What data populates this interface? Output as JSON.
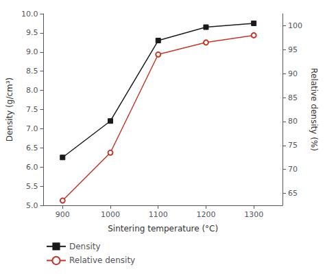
{
  "chart_data": {
    "type": "line",
    "x": [
      900,
      1000,
      1100,
      1200,
      1300
    ],
    "xlabel": "Sintering temperature (°C)",
    "ylabel": "Density (g/cm³)",
    "y2label": "Relative density (%)",
    "xlim": [
      860,
      1360
    ],
    "xticks": [
      900,
      1000,
      1100,
      1200,
      1300
    ],
    "ylim": [
      5.0,
      10.0
    ],
    "yticks": [
      {
        "value": 5,
        "label": "5.0"
      },
      5.5,
      {
        "value": 6,
        "label": "6.0"
      },
      6.5,
      {
        "value": 7,
        "label": "7.0"
      },
      7.5,
      {
        "value": 8,
        "label": "8.0"
      },
      8.5,
      {
        "value": 9,
        "label": "9.0"
      },
      9.5,
      {
        "value": 10,
        "label": "10.0"
      }
    ],
    "y2lim": [
      62.5,
      102.5
    ],
    "y2ticks": [
      65,
      70,
      75,
      80,
      85,
      90,
      95,
      100
    ],
    "grid": false,
    "legend": "lower left",
    "series": [
      {
        "name": "Density",
        "color": "#1a1a1a",
        "marker": "square",
        "values": [
          6.25,
          7.2,
          9.3,
          9.65,
          9.75
        ]
      },
      {
        "name": "Relative density",
        "color": "#c0392b",
        "marker": "circle",
        "axis": "y2",
        "values": [
          63.5,
          73.5,
          94.0,
          96.5,
          98.0
        ]
      }
    ]
  }
}
